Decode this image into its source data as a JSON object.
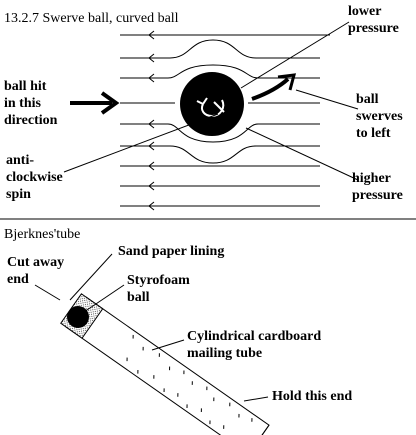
{
  "top_section": {
    "title": "13.2.7 Swerve ball, curved ball",
    "labels": {
      "lower_pressure": "lower\npressure",
      "ball_hit": "ball hit\nin this\ndirection",
      "ball_swerves": "ball\nswerves\nto left",
      "anti_clockwise": "anti-\nclockwise\nspin",
      "higher_pressure": "higher\npressure"
    }
  },
  "bottom_section": {
    "title": "Bjerknes'tube",
    "labels": {
      "cut_away": "Cut away\nend",
      "sand_paper": "Sand paper lining",
      "styrofoam": "Styrofoam\nball",
      "tube": "Cylindrical cardboard\nmailing tube",
      "hold": "Hold this end"
    }
  },
  "colors": {
    "ink": "#000000",
    "lining": "#b8b8b8",
    "background": "#ffffff"
  }
}
